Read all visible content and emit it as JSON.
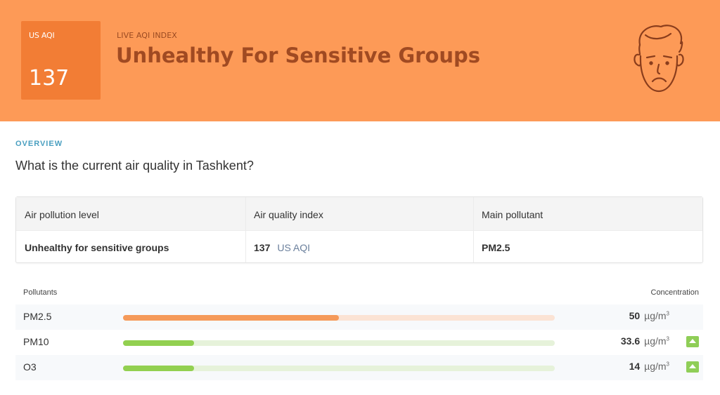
{
  "header": {
    "aqi_label": "US AQI",
    "aqi_value": "137",
    "index_label": "LIVE AQI INDEX",
    "status": "Unhealthy For Sensitive Groups",
    "face_icon": "sad-face-icon",
    "banner_color": "#fd9a57",
    "badge_color": "#f27d35"
  },
  "overview": {
    "label": "OVERVIEW",
    "question": "What is the current air quality in Tashkent?"
  },
  "summary": {
    "headers": [
      "Air pollution level",
      "Air quality index",
      "Main pollutant"
    ],
    "level": "Unhealthy for sensitive groups",
    "aqi_value": "137",
    "aqi_unit": "US AQI",
    "main_pollutant": "PM2.5"
  },
  "pollutants": {
    "header_left": "Pollutants",
    "header_right": "Concentration",
    "unit": "µg/m",
    "unit_sup": "3",
    "rows": [
      {
        "name": "PM2.5",
        "value": "50",
        "level_fraction": 0.5,
        "bar_color": "#f59a5a",
        "track_color": "#fbe3d4",
        "trend": ""
      },
      {
        "name": "PM10",
        "value": "33.6",
        "level_fraction": 0.165,
        "bar_color": "#92d050",
        "track_color": "#e6f2da",
        "trend": "up-arrow-icon"
      },
      {
        "name": "O3",
        "value": "14",
        "level_fraction": 0.165,
        "bar_color": "#92d050",
        "track_color": "#e6f2da",
        "trend": "up-arrow-icon"
      }
    ]
  }
}
